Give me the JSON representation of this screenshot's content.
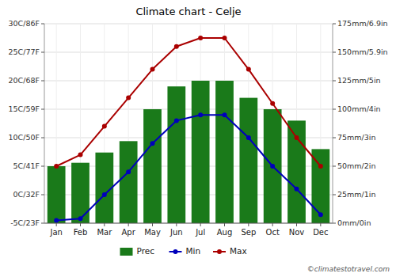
{
  "chart_data": {
    "type": "bar",
    "title": "Climate chart - Celje",
    "categories": [
      "Jan",
      "Feb",
      "Mar",
      "Apr",
      "May",
      "Jun",
      "Jul",
      "Aug",
      "Sep",
      "Oct",
      "Nov",
      "Dec"
    ],
    "series": [
      {
        "name": "Prec",
        "type": "bar",
        "axis": "y2",
        "color": "#1a7a1a",
        "values": [
          50,
          53,
          62,
          72,
          100,
          120,
          125,
          125,
          110,
          100,
          90,
          65
        ]
      },
      {
        "name": "Min",
        "type": "line",
        "color": "#0000bb",
        "marker": "circle",
        "values": [
          -4.5,
          -4.2,
          0,
          4,
          9,
          13,
          14,
          14,
          10,
          5,
          1,
          -3.5
        ]
      },
      {
        "name": "Max",
        "type": "line",
        "color": "#aa0000",
        "marker": "circle",
        "values": [
          5,
          7,
          12,
          17,
          22,
          26,
          27.5,
          27.5,
          22,
          16,
          10,
          5
        ]
      }
    ],
    "ylim": [
      -5,
      30
    ],
    "yticks": [
      {
        "value": -5,
        "label": "-5C/23F"
      },
      {
        "value": 0,
        "label": "0C/32F"
      },
      {
        "value": 5,
        "label": "5C/41F"
      },
      {
        "value": 10,
        "label": "10C/50F"
      },
      {
        "value": 15,
        "label": "15C/59F"
      },
      {
        "value": 20,
        "label": "20C/68F"
      },
      {
        "value": 25,
        "label": "25C/77F"
      },
      {
        "value": 30,
        "label": "30C/86F"
      }
    ],
    "y2lim": [
      0,
      175
    ],
    "y2ticks": [
      {
        "value": 0,
        "label": "0mm/0in"
      },
      {
        "value": 25,
        "label": "25mm/1in"
      },
      {
        "value": 50,
        "label": "50mm/2in"
      },
      {
        "value": 75,
        "label": "75mm/3in"
      },
      {
        "value": 100,
        "label": "100mm/4in"
      },
      {
        "value": 125,
        "label": "125mm/5in"
      },
      {
        "value": 150,
        "label": "150mm/5.9in"
      },
      {
        "value": 175,
        "label": "175mm/6.9in"
      }
    ],
    "grid": true,
    "legend": "bottom",
    "annotations": [
      "©climatestotravel.com"
    ]
  }
}
